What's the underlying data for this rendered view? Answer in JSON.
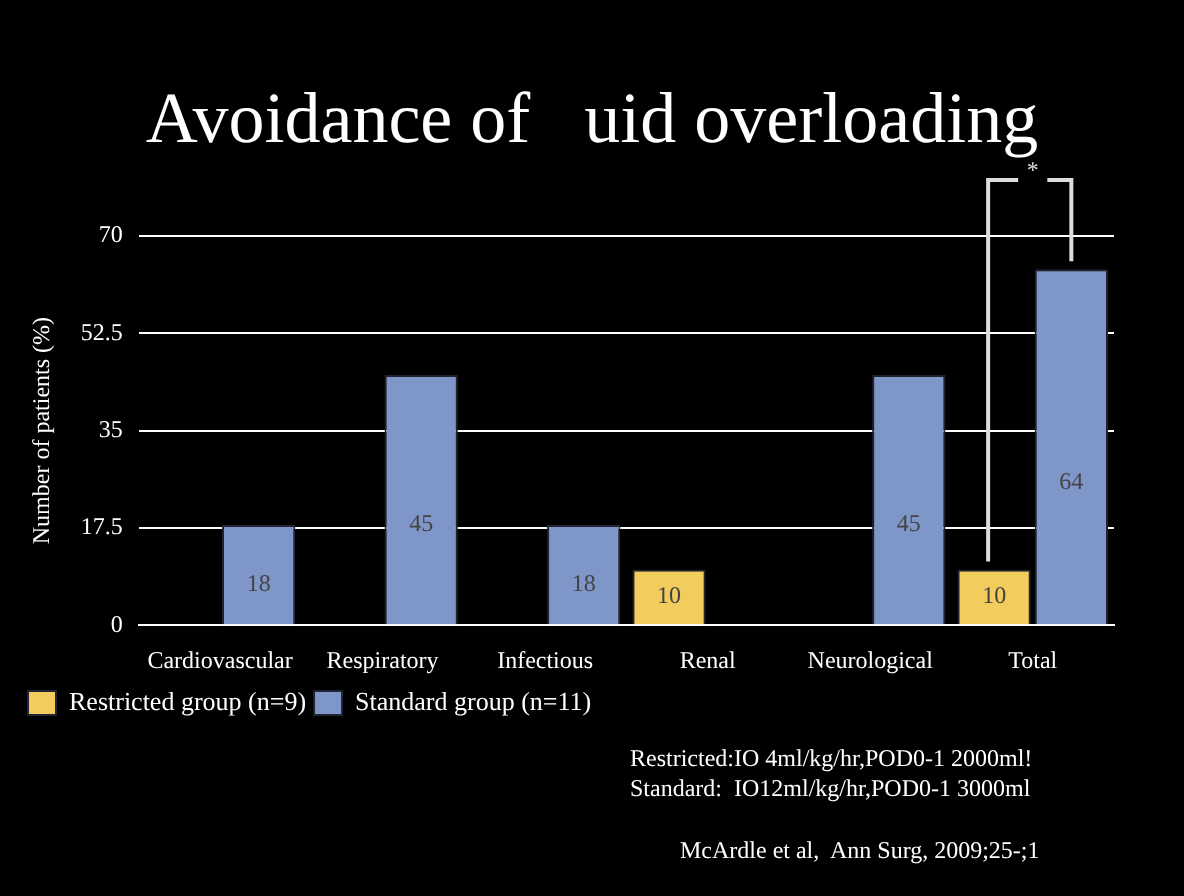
{
  "chart_data": {
    "type": "bar",
    "title": "Avoidance of   uid overloading",
    "ylabel": "Number of patients (%)",
    "categories": [
      "Cardiovascular",
      "Respiratory",
      "Infectious",
      "Renal",
      "Neurological",
      "Total"
    ],
    "series": [
      {
        "name": "Restricted group (n=9)",
        "color": "#f2cc5c",
        "values": [
          null,
          null,
          null,
          10,
          null,
          10
        ]
      },
      {
        "name": "Standard group (n=11)",
        "color": "#7f96c8",
        "values": [
          18,
          45,
          18,
          null,
          45,
          64
        ]
      }
    ],
    "ylim": [
      0,
      70
    ],
    "yticks": [
      0,
      17.5,
      35,
      52.5,
      70
    ],
    "grid": "y",
    "legend": "bottom left",
    "data_labels": true,
    "annotations": [
      "*",
      "Restricted:IO 4ml/kg/hr,POD0-1 2000ml!",
      "Standard:  IO12ml/kg/hr,POD0-1 3000ml",
      "McArdle et al,  Ann Surg, 2009;25-;1"
    ]
  }
}
